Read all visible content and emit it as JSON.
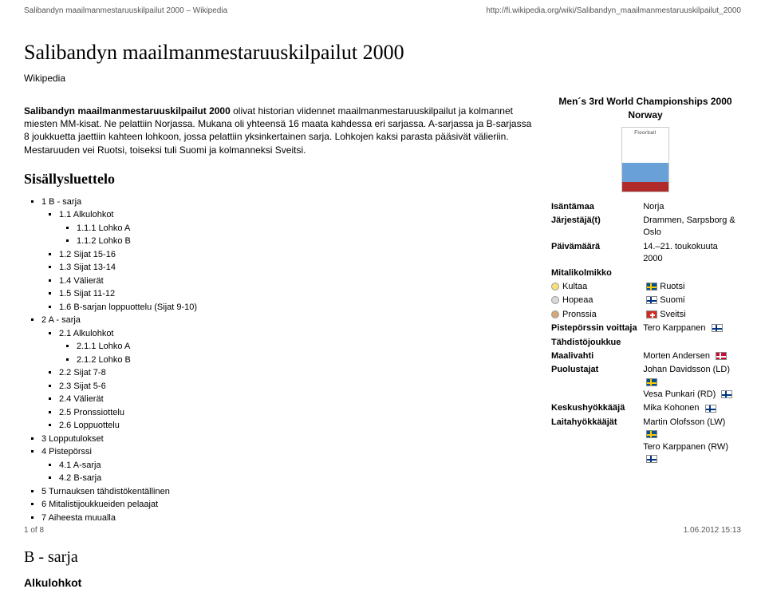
{
  "top": {
    "left": "Salibandyn maailmanmestaruuskilpailut 2000 – Wikipedia",
    "right": "http://fi.wikipedia.org/wiki/Salibandyn_maailmanmestaruuskilpailut_2000"
  },
  "title": "Salibandyn maailmanmestaruuskilpailut 2000",
  "source": "Wikipedia",
  "intro_bold": "Salibandyn maailmanmestaruuskilpailut 2000",
  "intro_rest": " olivat historian viidennet maailmanmestaruuskilpailut ja kolmannet miesten MM-kisat. Ne pelattiin Norjassa. Mukana oli yhteensä 16 maata kahdessa eri sarjassa. A-sarjassa ja B-sarjassa 8 joukkuetta jaettiin kahteen lohkoon, jossa pelattiin yksinkertainen sarja. Lohkojen kaksi parasta pääsivät välieriin. Mestaruuden vei Ruotsi, toiseksi tuli Suomi ja kolmanneksi Sveitsi.",
  "toc_title": "Sisällysluettelo",
  "toc": [
    {
      "t": "1 B - sarja",
      "c": [
        {
          "t": "1.1 Alkulohkot",
          "c": [
            {
              "t": "1.1.1 Lohko A"
            },
            {
              "t": "1.1.2 Lohko B"
            }
          ]
        },
        {
          "t": "1.2 Sijat 15-16"
        },
        {
          "t": "1.3 Sijat 13-14"
        },
        {
          "t": "1.4 Välierät"
        },
        {
          "t": "1.5 Sijat 11-12"
        },
        {
          "t": "1.6 B-sarjan loppuottelu (Sijat 9-10)"
        }
      ]
    },
    {
      "t": "2 A - sarja",
      "c": [
        {
          "t": "2.1 Alkulohkot",
          "c": [
            {
              "t": "2.1.1 Lohko A"
            },
            {
              "t": "2.1.2 Lohko B"
            }
          ]
        },
        {
          "t": "2.2 Sijat 7-8"
        },
        {
          "t": "2.3 Sijat 5-6"
        },
        {
          "t": "2.4 Välierät"
        },
        {
          "t": "2.5 Pronssiottelu"
        },
        {
          "t": "2.6 Loppuottelu"
        }
      ]
    },
    {
      "t": "3 Lopputulokset"
    },
    {
      "t": "4 Pistepörssi",
      "c": [
        {
          "t": "4.1 A-sarja"
        },
        {
          "t": "4.2 B-sarja"
        }
      ]
    },
    {
      "t": "5 Turnauksen tähdistökentällinen"
    },
    {
      "t": "6 Mitalistijoukkueiden pelaajat"
    },
    {
      "t": "7 Aiheesta muualla"
    }
  ],
  "infobox": {
    "title_l1": "Men´s 3rd World Championships 2000",
    "title_l2": "Norway",
    "host_label": "Isäntämaa",
    "host_val": "Norja",
    "org_label": "Järjestäjä(t)",
    "org_val": "Drammen, Sarpsborg & Oslo",
    "date_label": "Päivämäärä",
    "date_val": "14.–21. toukokuuta 2000",
    "medals_head": "Mitalikolmikko",
    "gold": "Kultaa",
    "gold_val": "Ruotsi",
    "silver": "Hopeaa",
    "silver_val": "Suomi",
    "bronze": "Pronssia",
    "bronze_val": "Sveitsi",
    "scorer_label": "Pistepörssin voittaja",
    "scorer_val": "Tero Karppanen",
    "allstar_head": "Tähdistöjoukkue",
    "gk_label": "Maalivahti",
    "gk_val": "Morten Andersen",
    "def_label": "Puolustajat",
    "def_val1": "Johan Davidsson (LD)",
    "def_val2": "Vesa Punkari (RD)",
    "cf_label": "Keskushyökkääjä",
    "cf_val": "Mika Kohonen",
    "wf_label": "Laitahyökkääjät",
    "wf_val1": "Martin Olofsson (LW)",
    "wf_val2": "Tero Karppanen (RW)"
  },
  "section_b": "B - sarja",
  "sub_alku": "Alkulohkot",
  "footer": {
    "left": "1 of 8",
    "right": "1.06.2012 15:13"
  }
}
